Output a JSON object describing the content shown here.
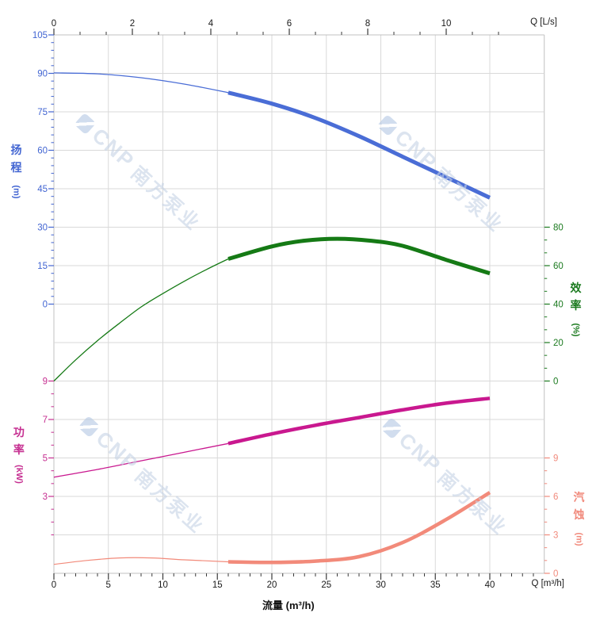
{
  "watermark": {
    "brand": "CNP",
    "company": "南方泵业"
  },
  "chart_data": {
    "type": "line",
    "title": "",
    "x_axis_bottom": {
      "label": "流量 (m³/h)",
      "corner_label": "Q [m³/h]",
      "ticks": [
        0,
        5,
        10,
        15,
        20,
        25,
        30,
        35,
        40
      ],
      "minor_step": 1,
      "range": [
        0,
        45
      ]
    },
    "x_axis_top": {
      "corner_label": "Q [L/s]",
      "ticks": [
        0,
        2,
        4,
        6,
        8,
        10
      ],
      "minor_divisions_between_majors": 3,
      "range": [
        0,
        12.5
      ]
    },
    "y_axes": [
      {
        "id": "head",
        "title": "扬程",
        "unit": "(m)",
        "color": "#4265d2",
        "tick_labels": [
          105,
          90,
          75,
          60,
          45,
          30,
          15,
          0
        ],
        "minor_step": 3,
        "range": [
          0,
          105
        ]
      },
      {
        "id": "efficiency",
        "title": "效率",
        "unit": "(%)",
        "color": "#1b7a1f",
        "tick_labels": [
          80,
          60,
          40,
          20,
          0
        ],
        "minor_step": 6.667,
        "range": [
          0,
          80
        ]
      },
      {
        "id": "power",
        "title": "功率",
        "unit": "(kW)",
        "color": "#c62f91",
        "tick_labels": [
          9,
          7,
          5,
          3
        ],
        "minor_step": 0.667,
        "range": [
          1,
          9
        ]
      },
      {
        "id": "npsh",
        "title": "汽蚀",
        "unit": "(m)",
        "color": "#f18a7c",
        "tick_labels": [
          9,
          6,
          3,
          0
        ],
        "minor_step": 1,
        "range": [
          0,
          9
        ]
      }
    ],
    "series": [
      {
        "id": "head",
        "name": "扬程",
        "axis": "head",
        "color": "#4a6dd6",
        "bold_from": 16,
        "thick_width": 5,
        "thin_width": 1.3,
        "points": [
          [
            0,
            90.2
          ],
          [
            4,
            89.8
          ],
          [
            8,
            88.3
          ],
          [
            12,
            85.8
          ],
          [
            16,
            82.5
          ],
          [
            20,
            78.2
          ],
          [
            24,
            72.6
          ],
          [
            28,
            65.5
          ],
          [
            32,
            57.5
          ],
          [
            36,
            49.5
          ],
          [
            40,
            41.5
          ]
        ]
      },
      {
        "id": "efficiency",
        "name": "效率",
        "axis": "efficiency",
        "color": "#157a15",
        "bold_from": 16,
        "thick_width": 5,
        "thin_width": 1.3,
        "points": [
          [
            0,
            0
          ],
          [
            2,
            11
          ],
          [
            4,
            21
          ],
          [
            6,
            30
          ],
          [
            8,
            38.5
          ],
          [
            10,
            45.5
          ],
          [
            12,
            52
          ],
          [
            14,
            58
          ],
          [
            16,
            63.5
          ],
          [
            20,
            70
          ],
          [
            23,
            73
          ],
          [
            26,
            74
          ],
          [
            29,
            73
          ],
          [
            32,
            70.3
          ],
          [
            36,
            63
          ],
          [
            40,
            56
          ]
        ]
      },
      {
        "id": "power",
        "name": "功率",
        "axis": "power",
        "color": "#c9188f",
        "bold_from": 16,
        "thick_width": 4.5,
        "thin_width": 1.3,
        "points": [
          [
            0,
            4.0
          ],
          [
            4,
            4.4
          ],
          [
            8,
            4.85
          ],
          [
            12,
            5.3
          ],
          [
            16,
            5.75
          ],
          [
            20,
            6.25
          ],
          [
            24,
            6.7
          ],
          [
            28,
            7.1
          ],
          [
            32,
            7.5
          ],
          [
            36,
            7.85
          ],
          [
            40,
            8.1
          ]
        ]
      },
      {
        "id": "npsh",
        "name": "汽蚀",
        "axis": "npsh",
        "color": "#f28a7a",
        "bold_from": 16,
        "thick_width": 4.5,
        "thin_width": 1.2,
        "points": [
          [
            0,
            0.7
          ],
          [
            3,
            1.0
          ],
          [
            6,
            1.2
          ],
          [
            9,
            1.2
          ],
          [
            12,
            1.05
          ],
          [
            16,
            0.9
          ],
          [
            20,
            0.85
          ],
          [
            24,
            0.95
          ],
          [
            28,
            1.3
          ],
          [
            32,
            2.4
          ],
          [
            36,
            4.2
          ],
          [
            40,
            6.3
          ]
        ]
      }
    ]
  }
}
